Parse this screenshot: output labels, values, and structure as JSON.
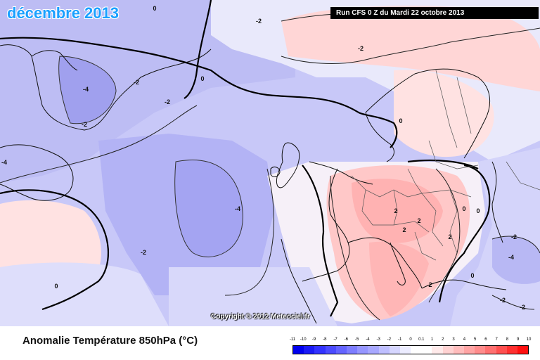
{
  "header": {
    "title": "décembre 2013",
    "run_info": "Run CFS 0 Z du Mardi 22 octobre 2013",
    "copyright": "Copyright © 2012 Meteociel.fr"
  },
  "legend": {
    "title": "Anomalie Température 850hPa (°C)",
    "ticks": [
      "-11",
      "-10",
      "-9",
      "-8",
      "-7",
      "-6",
      "-5",
      "-4",
      "-3",
      "-2",
      "-1",
      "0",
      "0.1",
      "1",
      "2",
      "3",
      "4",
      "5",
      "6",
      "7",
      "8",
      "9",
      "10"
    ],
    "colors": [
      "#0000ee",
      "#1a1af5",
      "#3232ff",
      "#4b4bff",
      "#6464ff",
      "#7d7dff",
      "#9696ff",
      "#a8a8ff",
      "#bfbfff",
      "#d6d6ff",
      "#ececff",
      "#ffffff",
      "#ffffff",
      "#ffeaea",
      "#ffd2d2",
      "#ffbcbc",
      "#ffa4a4",
      "#ff8c8c",
      "#ff7070",
      "#ff5050",
      "#ff3030",
      "#ff1010"
    ]
  },
  "contour_labels": [
    {
      "text": "-2"
    },
    {
      "text": "0"
    },
    {
      "text": "-2"
    },
    {
      "text": "-2"
    },
    {
      "text": "-4"
    },
    {
      "text": "-2"
    },
    {
      "text": "0"
    },
    {
      "text": "-4"
    },
    {
      "text": "-2"
    },
    {
      "text": "0"
    },
    {
      "text": "-4"
    },
    {
      "text": "0"
    },
    {
      "text": "2"
    },
    {
      "text": "2"
    },
    {
      "text": "2"
    },
    {
      "text": "0"
    },
    {
      "text": "-4"
    },
    {
      "text": "-2"
    },
    {
      "text": "0"
    },
    {
      "text": "2"
    },
    {
      "text": "0"
    },
    {
      "text": "-2"
    },
    {
      "text": "-2"
    },
    {
      "text": "-2"
    },
    {
      "text": "2"
    }
  ]
}
